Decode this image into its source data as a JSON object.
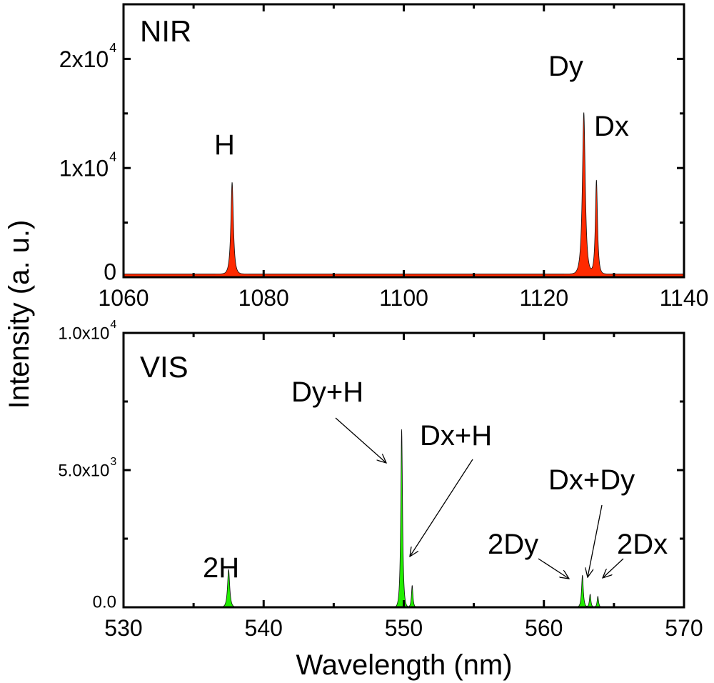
{
  "chart_data": [
    {
      "type": "area",
      "panel_label": "NIR",
      "xlim": [
        1060,
        1140
      ],
      "ylim": [
        0,
        25000
      ],
      "x_ticks": [
        "1060",
        "1080",
        "1100",
        "1120",
        "1140"
      ],
      "x_tick_values": [
        1060,
        1080,
        1100,
        1120,
        1140
      ],
      "y_ticks": [
        "0",
        "1x10",
        "2x10"
      ],
      "y_tick_exponents": [
        "",
        "4",
        "4"
      ],
      "y_tick_values": [
        0,
        10000,
        20000
      ],
      "fill_color": "#ff2a00",
      "peaks": [
        {
          "label": "H",
          "x": 1075.5,
          "y": 8400,
          "width": 0.35
        },
        {
          "label": "Dy",
          "x": 1125.7,
          "y": 14800,
          "width": 0.4
        },
        {
          "label": "Dx",
          "x": 1127.5,
          "y": 8600,
          "width": 0.3
        }
      ],
      "baseline": 300
    },
    {
      "type": "area",
      "panel_label": "VIS",
      "xlim": [
        530,
        570
      ],
      "ylim": [
        0,
        10000
      ],
      "x_ticks": [
        "530",
        "540",
        "550",
        "560",
        "570"
      ],
      "x_tick_values": [
        530,
        540,
        550,
        560,
        570
      ],
      "y_ticks": [
        "0.0",
        "5.0x10",
        "1.0x10"
      ],
      "y_tick_exponents": [
        "",
        "3",
        "4"
      ],
      "y_tick_values": [
        0,
        5000,
        10000
      ],
      "fill_color": "#22ee00",
      "peaks": [
        {
          "label": "2H",
          "x": 537.5,
          "y": 1380,
          "width": 0.15
        },
        {
          "label": "Dy+H",
          "x": 549.85,
          "y": 6500,
          "width": 0.12
        },
        {
          "label": "Dx+H",
          "x": 550.6,
          "y": 800,
          "width": 0.1
        },
        {
          "label": "2Dy",
          "x": 562.75,
          "y": 1170,
          "width": 0.12
        },
        {
          "label": "Dx+Dy",
          "x": 563.3,
          "y": 480,
          "width": 0.1
        },
        {
          "label": "2Dx",
          "x": 563.85,
          "y": 400,
          "width": 0.1
        }
      ],
      "baseline": 0
    }
  ],
  "ylabel": "Intensity (a. u.)",
  "xlabel": "Wavelength (nm)"
}
